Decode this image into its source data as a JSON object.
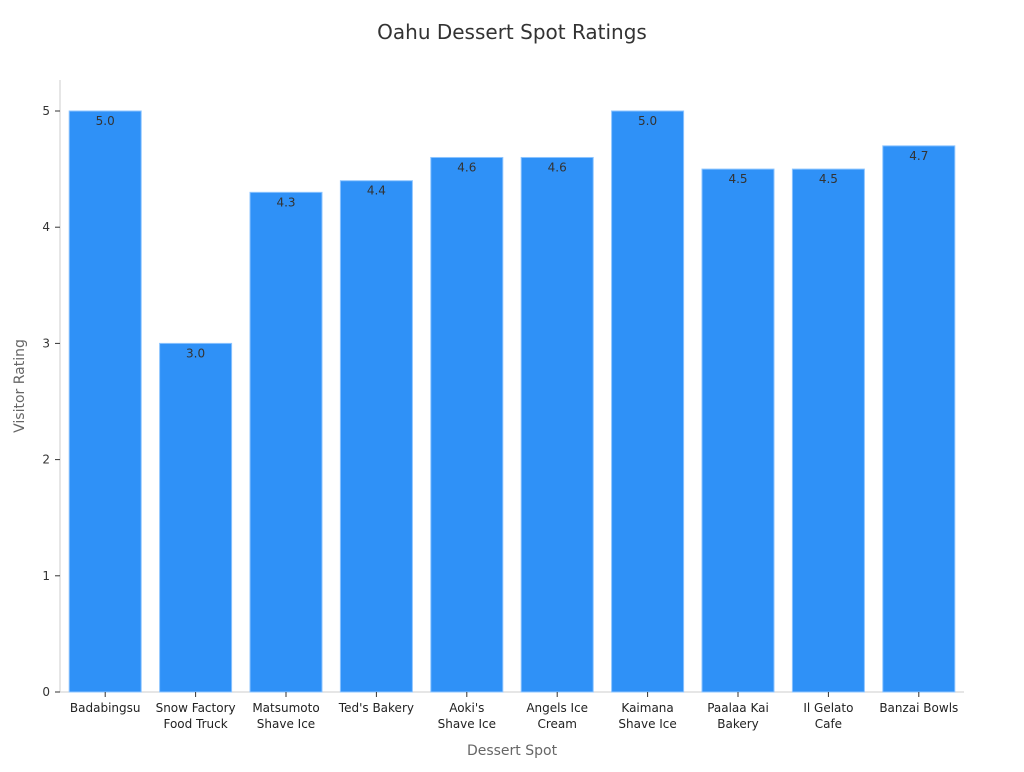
{
  "chart_data": {
    "type": "bar",
    "title": "Oahu Dessert Spot Ratings",
    "xlabel": "Dessert Spot",
    "ylabel": "Visitor Rating",
    "ylim": [
      0,
      5.25
    ],
    "yticks": [
      0,
      1,
      2,
      3,
      4,
      5
    ],
    "categories": [
      [
        "Badabingsu"
      ],
      [
        "Snow Factory",
        "Food Truck"
      ],
      [
        "Matsumoto",
        "Shave Ice"
      ],
      [
        "Ted's Bakery"
      ],
      [
        "Aoki's",
        "Shave Ice"
      ],
      [
        "Angels Ice",
        "Cream"
      ],
      [
        "Kaimana",
        "Shave Ice"
      ],
      [
        "Paalaa Kai",
        "Bakery"
      ],
      [
        "Il Gelato",
        "Cafe"
      ],
      [
        "Banzai Bowls"
      ]
    ],
    "values": [
      5.0,
      3.0,
      4.3,
      4.4,
      4.6,
      4.6,
      5.0,
      4.5,
      4.5,
      4.7
    ],
    "value_labels": [
      "5.0",
      "3.0",
      "4.3",
      "4.4",
      "4.6",
      "4.6",
      "5.0",
      "4.5",
      "4.5",
      "4.7"
    ],
    "bar_color": "#2f91f7",
    "bar_edge_color": "#8cc4ff",
    "grid": false,
    "legend": "none"
  }
}
